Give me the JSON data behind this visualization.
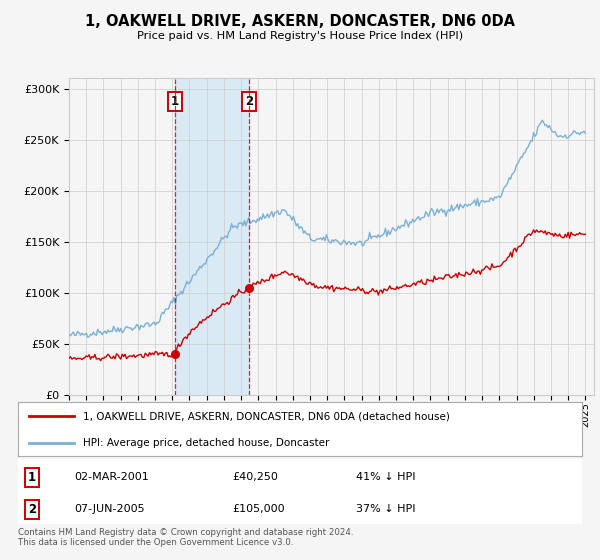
{
  "title": "1, OAKWELL DRIVE, ASKERN, DONCASTER, DN6 0DA",
  "subtitle": "Price paid vs. HM Land Registry's House Price Index (HPI)",
  "ylim": [
    0,
    310000
  ],
  "yticks": [
    0,
    50000,
    100000,
    150000,
    200000,
    250000,
    300000
  ],
  "ytick_labels": [
    "£0",
    "£50K",
    "£100K",
    "£150K",
    "£200K",
    "£250K",
    "£300K"
  ],
  "sale1_price": 40250,
  "sale1_date_str": "02-MAR-2001",
  "sale1_pct": "41% ↓ HPI",
  "sale1_yr": 2001.17,
  "sale2_price": 105000,
  "sale2_date_str": "07-JUN-2005",
  "sale2_pct": "37% ↓ HPI",
  "sale2_yr": 2005.45,
  "legend_line1": "1, OAKWELL DRIVE, ASKERN, DONCASTER, DN6 0DA (detached house)",
  "legend_line2": "HPI: Average price, detached house, Doncaster",
  "footnote": "Contains HM Land Registry data © Crown copyright and database right 2024.\nThis data is licensed under the Open Government Licence v3.0.",
  "line_color_red": "#cc0000",
  "line_color_blue": "#7ab0d4",
  "shading_color": "#daeaf5",
  "background_color": "#f5f5f5",
  "grid_color": "#cccccc"
}
